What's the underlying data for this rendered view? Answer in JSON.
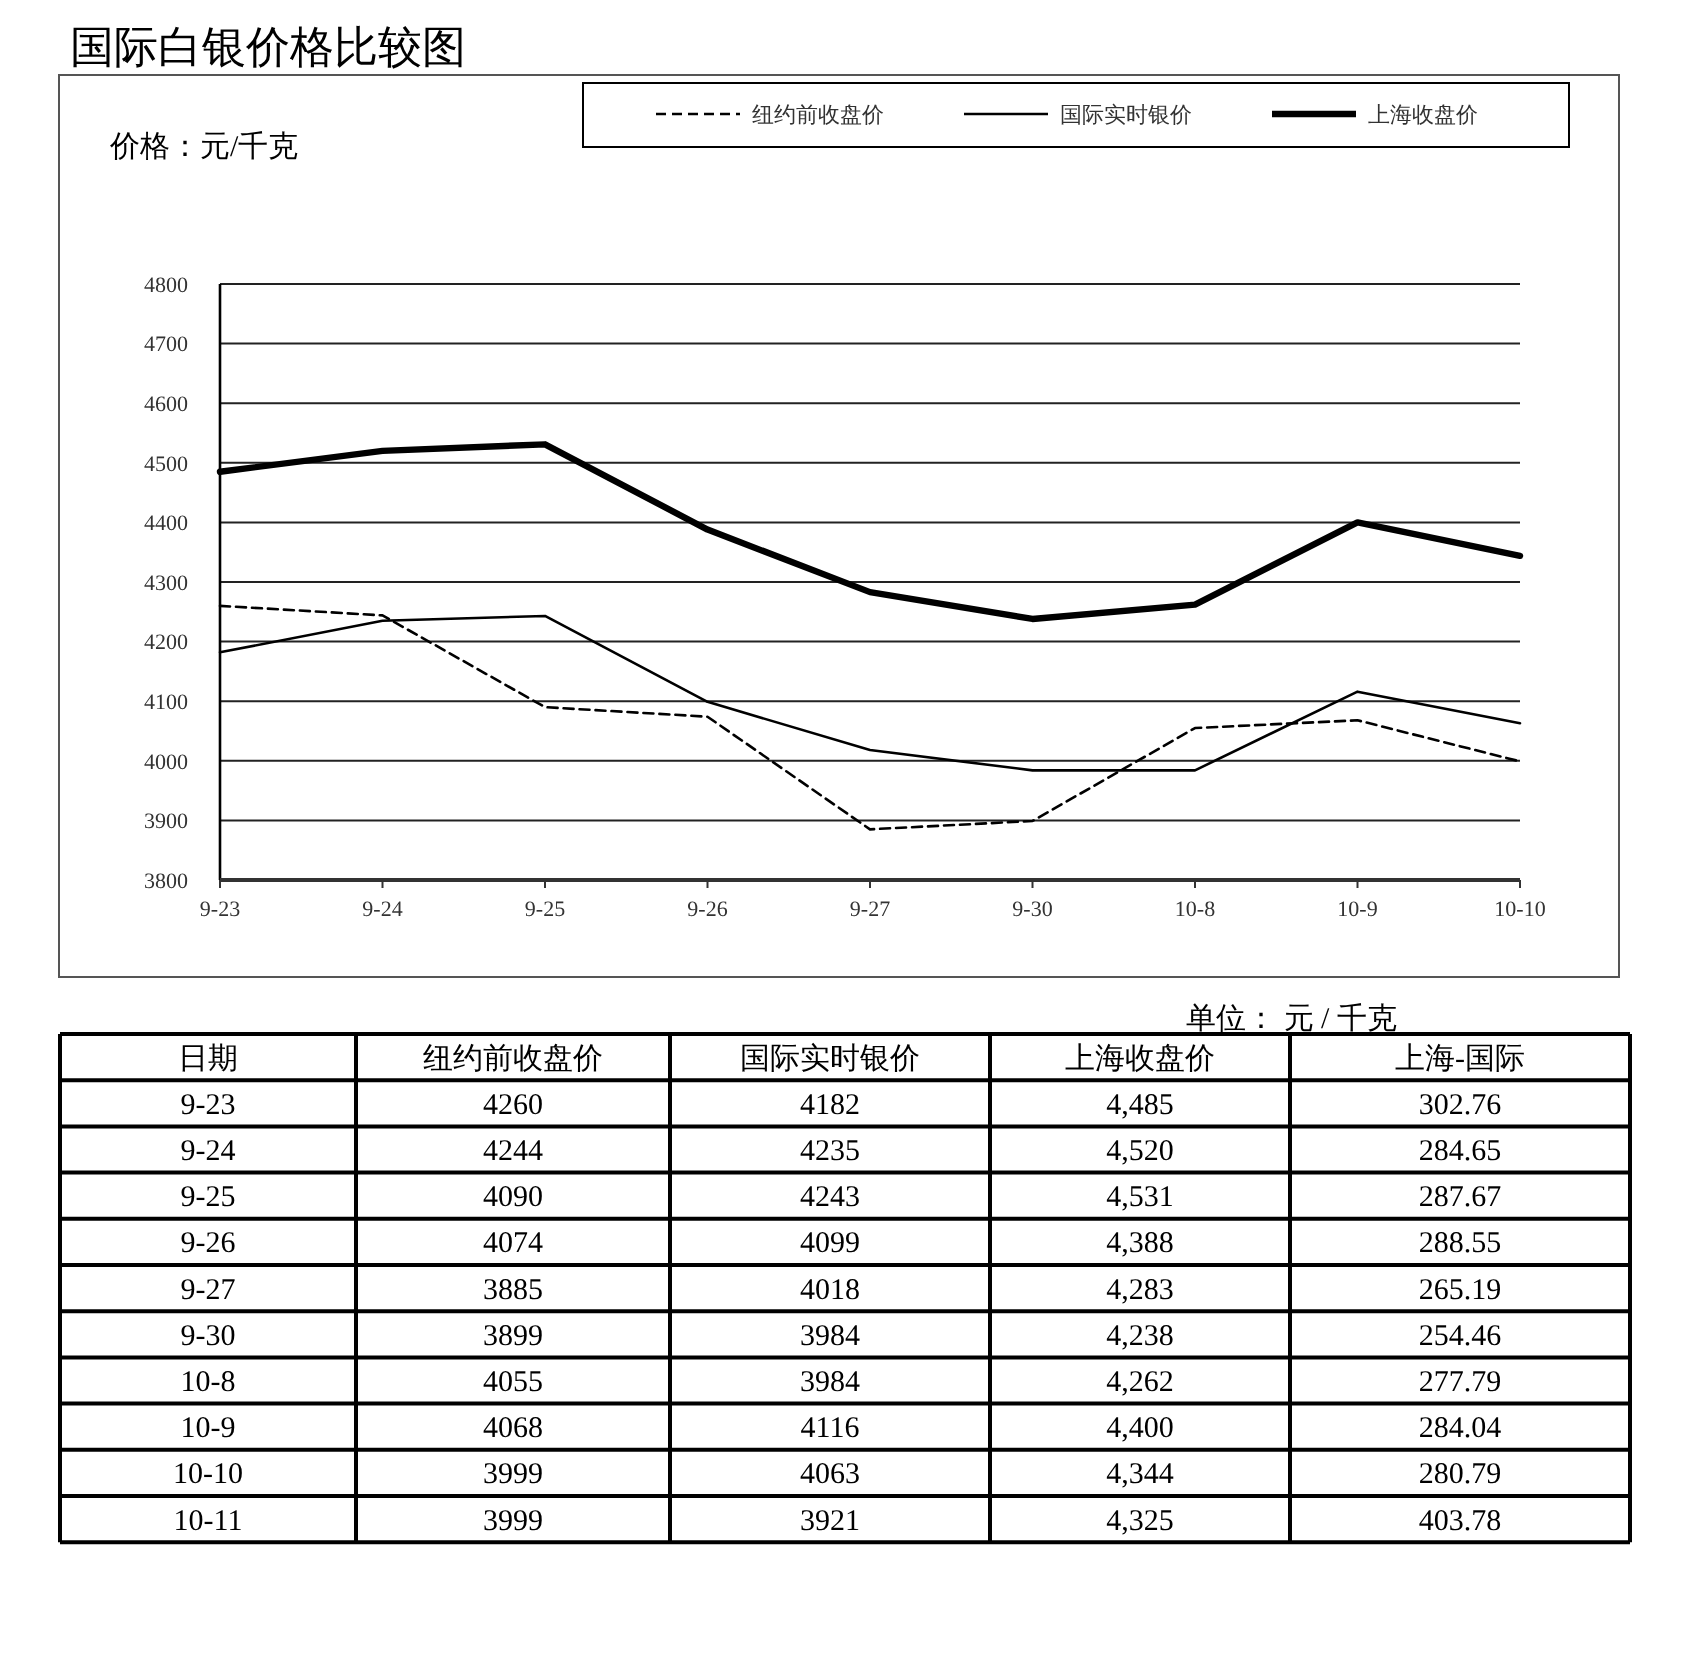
{
  "chart_data": [
    {
      "type": "line",
      "title": "国际白银价格比较图",
      "ylabel": "价格：元/千克",
      "categories": [
        "9-23",
        "9-24",
        "9-25",
        "9-26",
        "9-27",
        "9-30",
        "10-8",
        "10-9",
        "10-10"
      ],
      "series": [
        {
          "name": "纽约前收盘价",
          "color": "#000000",
          "line_style": "dashed",
          "values": [
            4260,
            4244,
            4090,
            4074,
            3885,
            3899,
            4055,
            4068,
            3999
          ]
        },
        {
          "name": "国际实时银价",
          "color": "#000000",
          "line_style": "solid",
          "values": [
            4182,
            4235,
            4243,
            4099,
            4018,
            3984,
            3984,
            4116,
            4063
          ]
        },
        {
          "name": "上海收盘价",
          "color": "#000000",
          "line_style": "solid",
          "values": [
            4485,
            4520,
            4531,
            4388,
            4283,
            4238,
            4262,
            4400,
            4344
          ]
        }
      ],
      "ylim": [
        3800,
        4800
      ],
      "yticks": [
        3800,
        3900,
        4000,
        4100,
        4200,
        4300,
        4400,
        4500,
        4600,
        4700,
        4800
      ],
      "grid": "y",
      "legend": "top right"
    },
    {
      "type": "other",
      "xlabel": "日期",
      "categories": [
        "9-23",
        "9-24",
        "9-25",
        "9-26",
        "9-27",
        "9-30",
        "10-8",
        "10-9",
        "10-10",
        "10-11"
      ],
      "series": [
        {
          "name": "纽约前收盘价",
          "values": [
            4260,
            4244,
            4090,
            4074,
            3885,
            3899,
            4055,
            4068,
            3999,
            3999
          ]
        },
        {
          "name": "国际实时银价",
          "values": [
            4182,
            4235,
            4243,
            4099,
            4018,
            3984,
            3984,
            4116,
            4063,
            3921
          ]
        },
        {
          "name": "上海收盘价",
          "values": [
            4485,
            4520,
            4531,
            4388,
            4283,
            4238,
            4262,
            4400,
            4344,
            4325
          ],
          "value_labels": [
            "4,485",
            "4,520",
            "4,531",
            "4,388",
            "4,283",
            "4,238",
            "4,262",
            "4,400",
            "4,344",
            "4,325"
          ]
        },
        {
          "name": "上海-国际",
          "values": [
            302.76,
            284.65,
            287.67,
            288.55,
            265.19,
            254.46,
            277.79,
            284.04,
            280.79,
            403.78
          ]
        }
      ],
      "data_labels": true,
      "annotations": [
        "单位： 元 / 千克"
      ]
    }
  ]
}
